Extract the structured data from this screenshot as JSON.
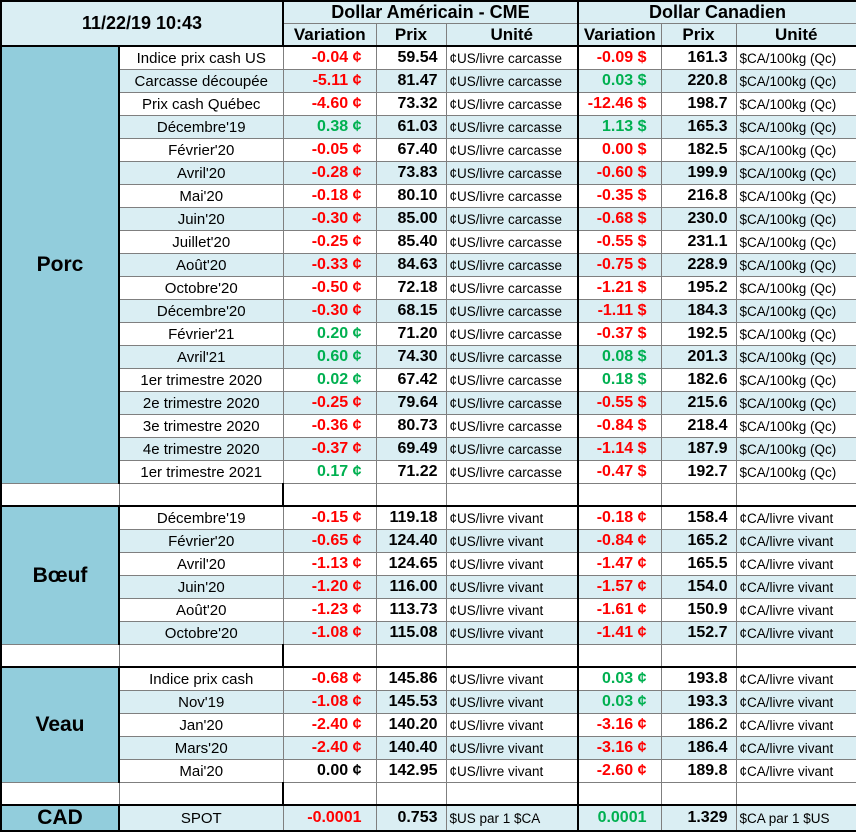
{
  "header": {
    "timestamp": "11/22/19 10:43",
    "usd_title": "Dollar Américain - CME",
    "cad_title": "Dollar Canadien",
    "columns": [
      "Variation",
      "Prix",
      "Unité",
      "Variation",
      "Prix",
      "Unité"
    ]
  },
  "colors": {
    "neg": "#ff0000",
    "pos": "#00b050",
    "zero": "#000000"
  },
  "sections": [
    {
      "name": "Porc",
      "rows": [
        [
          "Indice prix cash US",
          "-0.04 ¢",
          "59.54",
          "¢US/livre carcasse",
          "-0.09 $",
          "161.3",
          "$CA/100kg (Qc)"
        ],
        [
          "Carcasse découpée",
          "-5.11 ¢",
          "81.47",
          "¢US/livre carcasse",
          "0.03 $",
          "220.8",
          "$CA/100kg (Qc)"
        ],
        [
          "Prix cash Québec",
          "-4.60 ¢",
          "73.32",
          "¢US/livre carcasse",
          "-12.46 $",
          "198.7",
          "$CA/100kg (Qc)"
        ],
        [
          "Décembre'19",
          "0.38 ¢",
          "61.03",
          "¢US/livre carcasse",
          "1.13 $",
          "165.3",
          "$CA/100kg (Qc)"
        ],
        [
          "Février'20",
          "-0.05 ¢",
          "67.40",
          "¢US/livre carcasse",
          "0.00 $",
          "182.5",
          "$CA/100kg (Qc)"
        ],
        [
          "Avril'20",
          "-0.28 ¢",
          "73.83",
          "¢US/livre carcasse",
          "-0.60 $",
          "199.9",
          "$CA/100kg (Qc)"
        ],
        [
          "Mai'20",
          "-0.18 ¢",
          "80.10",
          "¢US/livre carcasse",
          "-0.35 $",
          "216.8",
          "$CA/100kg (Qc)"
        ],
        [
          "Juin'20",
          "-0.30 ¢",
          "85.00",
          "¢US/livre carcasse",
          "-0.68 $",
          "230.0",
          "$CA/100kg (Qc)"
        ],
        [
          "Juillet'20",
          "-0.25 ¢",
          "85.40",
          "¢US/livre carcasse",
          "-0.55 $",
          "231.1",
          "$CA/100kg (Qc)"
        ],
        [
          "Août'20",
          "-0.33 ¢",
          "84.63",
          "¢US/livre carcasse",
          "-0.75 $",
          "228.9",
          "$CA/100kg (Qc)"
        ],
        [
          "Octobre'20",
          "-0.50 ¢",
          "72.18",
          "¢US/livre carcasse",
          "-1.21 $",
          "195.2",
          "$CA/100kg (Qc)"
        ],
        [
          "Décembre'20",
          "-0.30 ¢",
          "68.15",
          "¢US/livre carcasse",
          "-1.11 $",
          "184.3",
          "$CA/100kg (Qc)"
        ],
        [
          "Février'21",
          "0.20 ¢",
          "71.20",
          "¢US/livre carcasse",
          "-0.37 $",
          "192.5",
          "$CA/100kg (Qc)"
        ],
        [
          "Avril'21",
          "0.60 ¢",
          "74.30",
          "¢US/livre carcasse",
          "0.08 $",
          "201.3",
          "$CA/100kg (Qc)"
        ],
        [
          "1er trimestre 2020",
          "0.02 ¢",
          "67.42",
          "¢US/livre carcasse",
          "0.18 $",
          "182.6",
          "$CA/100kg (Qc)"
        ],
        [
          "2e trimestre 2020",
          "-0.25 ¢",
          "79.64",
          "¢US/livre carcasse",
          "-0.55 $",
          "215.6",
          "$CA/100kg (Qc)"
        ],
        [
          "3e trimestre 2020",
          "-0.36 ¢",
          "80.73",
          "¢US/livre carcasse",
          "-0.84 $",
          "218.4",
          "$CA/100kg (Qc)"
        ],
        [
          "4e trimestre 2020",
          "-0.37 ¢",
          "69.49",
          "¢US/livre carcasse",
          "-1.14 $",
          "187.9",
          "$CA/100kg (Qc)"
        ],
        [
          "1er trimestre 2021",
          "0.17 ¢",
          "71.22",
          "¢US/livre carcasse",
          "-0.47 $",
          "192.7",
          "$CA/100kg (Qc)"
        ]
      ],
      "tones": [
        [
          "neg",
          "neg"
        ],
        [
          "neg",
          "pos"
        ],
        [
          "neg",
          "neg"
        ],
        [
          "pos",
          "pos"
        ],
        [
          "neg",
          "neg"
        ],
        [
          "neg",
          "neg"
        ],
        [
          "neg",
          "neg"
        ],
        [
          "neg",
          "neg"
        ],
        [
          "neg",
          "neg"
        ],
        [
          "neg",
          "neg"
        ],
        [
          "neg",
          "neg"
        ],
        [
          "neg",
          "neg"
        ],
        [
          "pos",
          "neg"
        ],
        [
          "pos",
          "pos"
        ],
        [
          "pos",
          "pos"
        ],
        [
          "neg",
          "neg"
        ],
        [
          "neg",
          "neg"
        ],
        [
          "neg",
          "neg"
        ],
        [
          "pos",
          "neg"
        ]
      ]
    },
    {
      "name": "Bœuf",
      "rows": [
        [
          "Décembre'19",
          "-0.15 ¢",
          "119.18",
          "¢US/livre vivant",
          "-0.18 ¢",
          "158.4",
          "¢CA/livre vivant"
        ],
        [
          "Février'20",
          "-0.65 ¢",
          "124.40",
          "¢US/livre vivant",
          "-0.84 ¢",
          "165.2",
          "¢CA/livre vivant"
        ],
        [
          "Avril'20",
          "-1.13 ¢",
          "124.65",
          "¢US/livre vivant",
          "-1.47 ¢",
          "165.5",
          "¢CA/livre vivant"
        ],
        [
          "Juin'20",
          "-1.20 ¢",
          "116.00",
          "¢US/livre vivant",
          "-1.57 ¢",
          "154.0",
          "¢CA/livre vivant"
        ],
        [
          "Août'20",
          "-1.23 ¢",
          "113.73",
          "¢US/livre vivant",
          "-1.61 ¢",
          "150.9",
          "¢CA/livre vivant"
        ],
        [
          "Octobre'20",
          "-1.08 ¢",
          "115.08",
          "¢US/livre vivant",
          "-1.41 ¢",
          "152.7",
          "¢CA/livre vivant"
        ]
      ],
      "tones": [
        [
          "neg",
          "neg"
        ],
        [
          "neg",
          "neg"
        ],
        [
          "neg",
          "neg"
        ],
        [
          "neg",
          "neg"
        ],
        [
          "neg",
          "neg"
        ],
        [
          "neg",
          "neg"
        ]
      ]
    },
    {
      "name": "Veau",
      "rows": [
        [
          "Indice prix cash",
          "-0.68 ¢",
          "145.86",
          "¢US/livre vivant",
          "0.03 ¢",
          "193.8",
          "¢CA/livre vivant"
        ],
        [
          "Nov'19",
          "-1.08 ¢",
          "145.53",
          "¢US/livre vivant",
          "0.03 ¢",
          "193.3",
          "¢CA/livre vivant"
        ],
        [
          "Jan'20",
          "-2.40 ¢",
          "140.20",
          "¢US/livre vivant",
          "-3.16 ¢",
          "186.2",
          "¢CA/livre vivant"
        ],
        [
          "Mars'20",
          "-2.40 ¢",
          "140.40",
          "¢US/livre vivant",
          "-3.16 ¢",
          "186.4",
          "¢CA/livre vivant"
        ],
        [
          "Mai'20",
          "0.00 ¢",
          "142.95",
          "¢US/livre vivant",
          "-2.60 ¢",
          "189.8",
          "¢CA/livre vivant"
        ]
      ],
      "tones": [
        [
          "neg",
          "pos"
        ],
        [
          "neg",
          "pos"
        ],
        [
          "neg",
          "neg"
        ],
        [
          "neg",
          "neg"
        ],
        [
          "zero",
          "neg"
        ]
      ]
    },
    {
      "name": "CAD",
      "rows": [
        [
          "SPOT",
          "-0.0001",
          "0.753",
          "$US par 1 $CA",
          "0.0001",
          "1.329",
          "$CA par 1 $US"
        ]
      ],
      "tones": [
        [
          "neg",
          "pos"
        ]
      ]
    }
  ]
}
